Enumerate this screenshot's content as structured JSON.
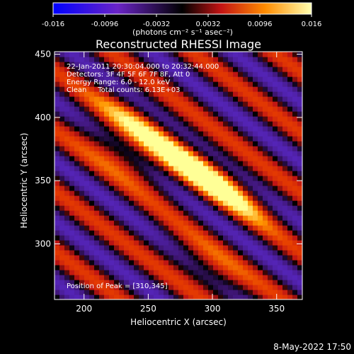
{
  "chart_data": {
    "type": "heatmap",
    "title": "Reconstructed RHESSI Image",
    "xlabel": "Heliocentric X (arcsec)",
    "ylabel": "Heliocentric Y (arcsec)",
    "xlim": [
      177,
      370
    ],
    "ylim": [
      256,
      452
    ],
    "x_ticks": [
      200,
      250,
      300,
      350
    ],
    "y_ticks": [
      300,
      350,
      400,
      450
    ],
    "colorbar": {
      "range": [
        -0.016,
        0.016
      ],
      "ticks": [
        "-0.016",
        "-0.0096",
        "-0.0032",
        "0.0032",
        "0.0096",
        "0.016"
      ],
      "unit_label": "(photons cm⁻² s⁻¹ asec⁻²)"
    },
    "annotations": {
      "line1": "22-Jan-2011 20:30:04.000 to 20:32:44.000",
      "line2": "Detectors: 3F 4F 5F 6F 7F 8F, Att 0",
      "line3": "Energy Range: 6.0 - 12.0 keV",
      "line4": "Clean     Total counts: 6.13E+03",
      "peak": "Position of Peak = [310,345]"
    },
    "peaks": [
      {
        "x": 310,
        "y": 345,
        "value": 0.016
      },
      {
        "x": 280,
        "y": 365,
        "value": 0.014
      },
      {
        "x": 243,
        "y": 395,
        "value": 0.012
      },
      {
        "x": 228,
        "y": 370,
        "value": 0.01
      },
      {
        "x": 300,
        "y": 280,
        "value": 0.009
      }
    ],
    "grid": false,
    "colormap": [
      "#0000ff",
      "#5a20c8",
      "#000000",
      "#c81414",
      "#ff8c00",
      "#ffff80"
    ]
  },
  "footer": {
    "date": "8-May-2022 17:50"
  }
}
